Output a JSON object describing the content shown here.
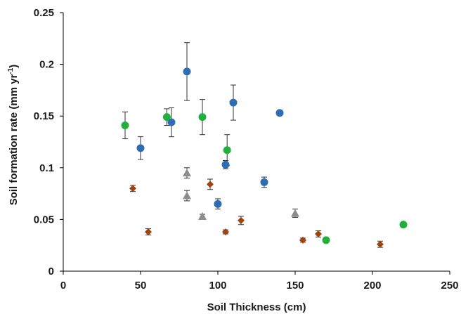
{
  "chart_data": {
    "type": "scatter",
    "title": "",
    "xlabel": "Soil Thickness (cm)",
    "ylabel_main": "Soil formation rate (mm yr",
    "ylabel_sup": "-1",
    "ylabel_close": ")",
    "xlim": [
      0,
      250
    ],
    "ylim": [
      0,
      0.25
    ],
    "xticks": [
      "0",
      "50",
      "100",
      "150",
      "200",
      "250"
    ],
    "yticks": [
      "0",
      "0.05",
      "0.1",
      "0.15",
      "0.2",
      "0.25"
    ],
    "grid": false,
    "legend": "none",
    "series": [
      {
        "color": "#2E6DB4",
        "marker": "circle",
        "points": [
          {
            "x": 50,
            "y": 0.119,
            "err": 0.011
          },
          {
            "x": 70,
            "y": 0.144,
            "err": 0.014
          },
          {
            "x": 80,
            "y": 0.193,
            "err": 0.028
          },
          {
            "x": 100,
            "y": 0.065,
            "err": 0.005
          },
          {
            "x": 105,
            "y": 0.103,
            "err": 0.004
          },
          {
            "x": 110,
            "y": 0.163,
            "err": 0.017
          },
          {
            "x": 130,
            "y": 0.086,
            "err": 0.005
          },
          {
            "x": 140,
            "y": 0.153,
            "err": 0
          }
        ]
      },
      {
        "color": "#22B03C",
        "marker": "circle",
        "points": [
          {
            "x": 40,
            "y": 0.141,
            "err": 0.013
          },
          {
            "x": 67,
            "y": 0.149,
            "err": 0.008
          },
          {
            "x": 90,
            "y": 0.149,
            "err": 0.017
          },
          {
            "x": 106,
            "y": 0.117,
            "err": 0.015
          },
          {
            "x": 170,
            "y": 0.03,
            "err": 0
          },
          {
            "x": 220,
            "y": 0.045,
            "err": 0
          }
        ]
      },
      {
        "color": "#8C8C8C",
        "marker": "triangle",
        "points": [
          {
            "x": 80,
            "y": 0.095,
            "err": 0.005
          },
          {
            "x": 80,
            "y": 0.073,
            "err": 0.005
          },
          {
            "x": 90,
            "y": 0.053,
            "err": 0.002
          },
          {
            "x": 150,
            "y": 0.056,
            "err": 0.004
          }
        ]
      },
      {
        "color": "#A0420E",
        "marker": "diamond",
        "points": [
          {
            "x": 45,
            "y": 0.08,
            "err": 0.003
          },
          {
            "x": 55,
            "y": 0.038,
            "err": 0.003
          },
          {
            "x": 95,
            "y": 0.084,
            "err": 0.005
          },
          {
            "x": 105,
            "y": 0.038,
            "err": 0.002
          },
          {
            "x": 115,
            "y": 0.049,
            "err": 0.004
          },
          {
            "x": 155,
            "y": 0.03,
            "err": 0.002
          },
          {
            "x": 165,
            "y": 0.036,
            "err": 0.003
          },
          {
            "x": 205,
            "y": 0.026,
            "err": 0.003
          }
        ]
      }
    ]
  }
}
